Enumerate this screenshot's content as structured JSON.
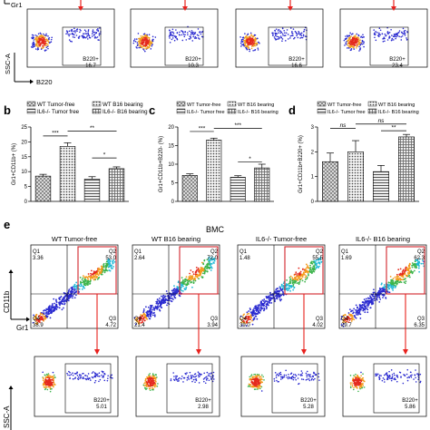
{
  "panel_letters": {
    "b": "b",
    "c": "c",
    "d": "d",
    "e": "e"
  },
  "top_row": {
    "plots": [
      {
        "gate_label": "B220+",
        "gate_value": "16.7"
      },
      {
        "gate_label": "B220+",
        "gate_value": "10.3"
      },
      {
        "gate_label": "B220+",
        "gate_value": "16.6"
      },
      {
        "gate_label": "B220+",
        "gate_value": "23.4"
      }
    ],
    "y_axis_label": "SSC-A",
    "x_axis_label": "B220",
    "top_cut_label": "Gr1"
  },
  "legend": {
    "wt_tumor_free": "WT Tumor-free",
    "wt_b16": "WT B16 bearing",
    "il6_tumor_free": "IL6-/- Tumor free",
    "il6_b16": "IL6-/- B16 bearing"
  },
  "chart_data": [
    {
      "type": "bar",
      "panel": "b",
      "categories": [
        "WT Tumor-free",
        "WT B16 bearing",
        "IL6-/- Tumor free",
        "IL6-/- B16 bearing"
      ],
      "values": [
        8.5,
        18.5,
        7.5,
        11.0
      ],
      "errors": [
        0.6,
        1.2,
        0.8,
        0.6
      ],
      "ylabel": "Gr1+CD11b+ (%)",
      "ylim": [
        0,
        25
      ],
      "yticks": [
        0,
        5,
        10,
        15,
        20,
        25
      ],
      "significance": [
        {
          "from": 0,
          "to": 1,
          "label": "***",
          "level": 22
        },
        {
          "from": 1,
          "to": 3,
          "label": "**",
          "level": 23.6
        },
        {
          "from": 2,
          "to": 3,
          "label": "*",
          "level": 14.6
        }
      ]
    },
    {
      "type": "bar",
      "panel": "c",
      "categories": [
        "WT Tumor-free",
        "WT B16 bearing",
        "IL6-/- Tumor free",
        "IL6-/- B16 bearing"
      ],
      "values": [
        7.0,
        16.5,
        6.5,
        9.0
      ],
      "errors": [
        0.4,
        0.5,
        0.4,
        1.0
      ],
      "ylabel": "Gr1+CD11b+B220- (%)",
      "ylim": [
        0,
        20
      ],
      "yticks": [
        0,
        5,
        10,
        15,
        20
      ],
      "significance": [
        {
          "from": 0,
          "to": 1,
          "label": "***",
          "level": 18.8
        },
        {
          "from": 1,
          "to": 3,
          "label": "***",
          "level": 19.6
        },
        {
          "from": 2,
          "to": 3,
          "label": "*",
          "level": 10.6
        }
      ]
    },
    {
      "type": "bar",
      "panel": "d",
      "categories": [
        "WT Tumor-free",
        "WT B16 bearing",
        "IL6-/- Tumor free",
        "IL6-/- B16 bearing"
      ],
      "values": [
        1.6,
        2.0,
        1.2,
        2.6
      ],
      "errors": [
        0.35,
        0.45,
        0.25,
        0.1
      ],
      "ylabel": "Gr1+CD11b+B220+ (%)",
      "ylim": [
        0,
        3
      ],
      "yticks": [
        0,
        1,
        2,
        3
      ],
      "significance": [
        {
          "from": 0,
          "to": 1,
          "label": "ns",
          "level": 2.95
        },
        {
          "from": 1,
          "to": 3,
          "label": "ns",
          "level": 3.12
        },
        {
          "from": 2,
          "to": 3,
          "label": "**",
          "level": 2.85
        }
      ]
    }
  ],
  "panel_e": {
    "title": "BMC",
    "plots": [
      {
        "title": "WT Tumor-free",
        "q1": "3.36",
        "q2": "53.0",
        "q3": "4.72",
        "q4": "38.9"
      },
      {
        "title": "WT B16 bearing",
        "q1": "2.64",
        "q2": "72.0",
        "q3": "3.94",
        "q4": "21.4"
      },
      {
        "title": "IL6-/- Tumor-free",
        "q1": "1.48",
        "q2": "55.5",
        "q3": "4.02",
        "q4": "39.0"
      },
      {
        "title": "IL6-/- B16 bearing",
        "q1": "1.69",
        "q2": "62.3",
        "q3": "6.35",
        "q4": "29.7"
      }
    ],
    "quadrant_names": {
      "q1": "Q1",
      "q2": "Q2",
      "q3": "Q3",
      "q4": "Q4"
    },
    "y_axis_label": "CD11b",
    "x_axis_label": "Gr1",
    "bottom_row": [
      {
        "gate_label": "B220+",
        "gate_value": "5.01"
      },
      {
        "gate_label": "B220+",
        "gate_value": "2.98"
      },
      {
        "gate_label": "B220+",
        "gate_value": "5.28"
      },
      {
        "gate_label": "B220+",
        "gate_value": "5.86"
      }
    ],
    "bottom_y_axis_label": "SSC-A"
  },
  "colors": {
    "arrow_red": "#e8211d",
    "dots_blue": "#2b2bd0",
    "hot_red": "#e42a1e",
    "gate_box": "#d2232a",
    "bar_fill": "#c4c4c4"
  }
}
